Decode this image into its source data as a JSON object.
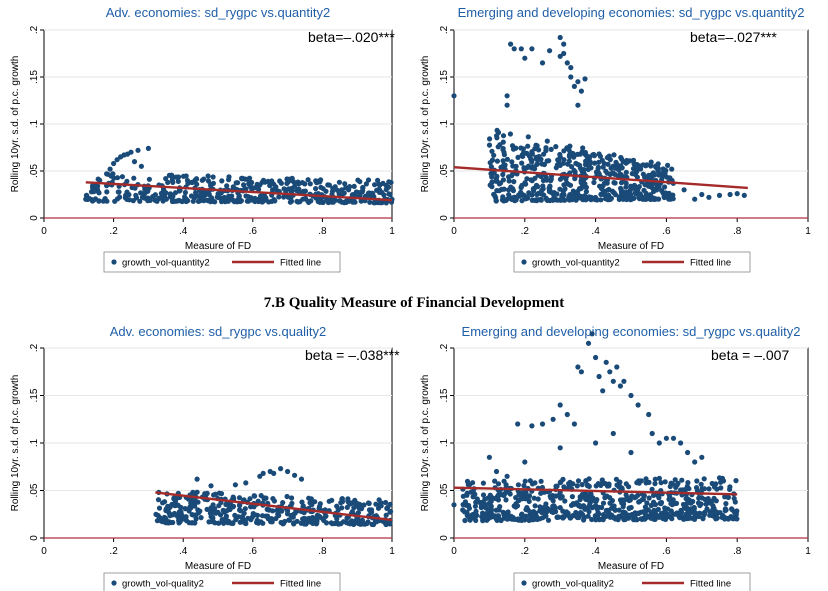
{
  "section_heading": "7.B Quality Measure of Financial Development",
  "colors": {
    "title": "#1f5fa8",
    "scatter": "#1a4a78",
    "fit": "#a52a2a",
    "zero_line": "#b03040",
    "plot_bg": "#ffffff",
    "grid": "#e6e6e6"
  },
  "chart_data": [
    {
      "type": "scatter",
      "title": "Adv. economies: sd_rygpc vs.quantity2",
      "xlabel": "Measure of FD",
      "ylabel": "Rolling 10yr. s.d. of p.c. growth",
      "xlim": [
        0,
        1
      ],
      "ylim": [
        0,
        0.2
      ],
      "xticks": [
        0,
        0.2,
        0.4,
        0.6,
        0.8,
        1
      ],
      "xtick_labels": [
        "0",
        ".2",
        ".4",
        ".6",
        ".8",
        "1"
      ],
      "yticks": [
        0,
        0.05,
        0.1,
        0.15,
        0.2
      ],
      "ytick_labels": [
        "0",
        ".05",
        ".1",
        ".15",
        ".2"
      ],
      "annotation": "beta=–.020***",
      "legend_position": "bottom",
      "series": [
        {
          "name": "growth_vol-quantity2",
          "kind": "points",
          "cloud": {
            "xmin": 0.12,
            "xmax": 1.0,
            "ylow0": 0.018,
            "ylow1": 0.016,
            "yhigh0": 0.048,
            "yhigh1": 0.04,
            "n": 480,
            "seed": 11
          },
          "extra": [
            [
              0.14,
              0.032
            ],
            [
              0.16,
              0.04
            ],
            [
              0.19,
              0.052
            ],
            [
              0.2,
              0.058
            ],
            [
              0.21,
              0.062
            ],
            [
              0.22,
              0.065
            ],
            [
              0.23,
              0.067
            ],
            [
              0.24,
              0.068
            ],
            [
              0.25,
              0.07
            ],
            [
              0.27,
              0.072
            ],
            [
              0.3,
              0.074
            ],
            [
              0.18,
              0.047
            ],
            [
              0.26,
              0.06
            ],
            [
              0.28,
              0.055
            ],
            [
              0.12,
              0.02
            ]
          ]
        },
        {
          "name": "Fitted line",
          "kind": "line",
          "points": [
            [
              0.12,
              0.038
            ],
            [
              1.0,
              0.019
            ]
          ]
        }
      ]
    },
    {
      "type": "scatter",
      "title": "Emerging and developing economies: sd_rygpc vs.quantity2",
      "xlabel": "Measure of FD",
      "ylabel": "Rolling 10yr. s.d. of p.c. growth",
      "xlim": [
        0,
        1
      ],
      "ylim": [
        0,
        0.2
      ],
      "xticks": [
        0,
        0.2,
        0.4,
        0.6,
        0.8,
        1
      ],
      "xtick_labels": [
        "0",
        ".2",
        ".4",
        ".6",
        ".8",
        "1"
      ],
      "yticks": [
        0,
        0.05,
        0.1,
        0.15,
        0.2
      ],
      "ytick_labels": [
        "0",
        ".05",
        ".1",
        ".15",
        ".2"
      ],
      "annotation": "beta=–.027***",
      "legend_position": "bottom",
      "series": [
        {
          "name": "growth_vol-quantity2",
          "kind": "points",
          "cloud": {
            "xmin": 0.1,
            "xmax": 0.62,
            "ylow0": 0.018,
            "ylow1": 0.02,
            "yhigh0": 0.095,
            "yhigh1": 0.055,
            "n": 600,
            "seed": 23
          },
          "extra": [
            [
              0.0,
              0.13
            ],
            [
              0.15,
              0.12
            ],
            [
              0.15,
              0.13
            ],
            [
              0.16,
              0.185
            ],
            [
              0.17,
              0.18
            ],
            [
              0.19,
              0.18
            ],
            [
              0.2,
              0.17
            ],
            [
              0.22,
              0.18
            ],
            [
              0.25,
              0.165
            ],
            [
              0.27,
              0.178
            ],
            [
              0.3,
              0.172
            ],
            [
              0.3,
              0.192
            ],
            [
              0.31,
              0.185
            ],
            [
              0.31,
              0.175
            ],
            [
              0.32,
              0.165
            ],
            [
              0.33,
              0.16
            ],
            [
              0.33,
              0.15
            ],
            [
              0.34,
              0.14
            ],
            [
              0.35,
              0.145
            ],
            [
              0.36,
              0.135
            ],
            [
              0.35,
              0.12
            ],
            [
              0.37,
              0.148
            ],
            [
              0.68,
              0.02
            ],
            [
              0.7,
              0.025
            ],
            [
              0.72,
              0.022
            ],
            [
              0.75,
              0.024
            ],
            [
              0.78,
              0.025
            ],
            [
              0.8,
              0.026
            ],
            [
              0.82,
              0.024
            ],
            [
              0.65,
              0.03
            ]
          ]
        },
        {
          "name": "Fitted line",
          "kind": "line",
          "points": [
            [
              0.0,
              0.054
            ],
            [
              0.83,
              0.032
            ]
          ]
        }
      ]
    },
    {
      "type": "scatter",
      "title": "Adv. economies: sd_rygpc vs.quality2",
      "xlabel": "Measure of FD",
      "ylabel": "Rolling 10yr. s.d. of p.c. growth",
      "xlim": [
        0,
        1
      ],
      "ylim": [
        0,
        0.2
      ],
      "xticks": [
        0,
        0.2,
        0.4,
        0.6,
        0.8,
        1
      ],
      "xtick_labels": [
        "0",
        ".2",
        ".4",
        ".6",
        ".8",
        "1"
      ],
      "yticks": [
        0,
        0.05,
        0.1,
        0.15,
        0.2
      ],
      "ytick_labels": [
        "0",
        ".05",
        ".1",
        ".15",
        ".2"
      ],
      "annotation": "beta = –.038***",
      "legend_position": "bottom",
      "series": [
        {
          "name": "growth_vol-quality2",
          "kind": "points",
          "cloud": {
            "xmin": 0.32,
            "xmax": 1.0,
            "ylow0": 0.016,
            "ylow1": 0.014,
            "yhigh0": 0.05,
            "yhigh1": 0.04,
            "n": 420,
            "seed": 37
          },
          "extra": [
            [
              0.62,
              0.065
            ],
            [
              0.63,
              0.068
            ],
            [
              0.65,
              0.07
            ],
            [
              0.66,
              0.068
            ],
            [
              0.68,
              0.073
            ],
            [
              0.7,
              0.07
            ],
            [
              0.72,
              0.066
            ],
            [
              0.74,
              0.062
            ],
            [
              0.58,
              0.058
            ],
            [
              0.55,
              0.056
            ],
            [
              0.44,
              0.062
            ],
            [
              0.48,
              0.055
            ],
            [
              0.36,
              0.026
            ],
            [
              0.33,
              0.048
            ]
          ]
        },
        {
          "name": "Fitted line",
          "kind": "line",
          "points": [
            [
              0.32,
              0.048
            ],
            [
              1.0,
              0.019
            ]
          ]
        }
      ]
    },
    {
      "type": "scatter",
      "title": "Emerging and developing economies: sd_rygpc vs.quality2",
      "xlabel": "Measure of FD",
      "ylabel": "Rolling 10yr. s.d. of p.c. growth",
      "xlim": [
        0,
        1
      ],
      "ylim": [
        0,
        0.2
      ],
      "xticks": [
        0,
        0.2,
        0.4,
        0.6,
        0.8,
        1
      ],
      "xtick_labels": [
        "0",
        ".2",
        ".4",
        ".6",
        ".8",
        "1"
      ],
      "yticks": [
        0,
        0.05,
        0.1,
        0.15,
        0.2
      ],
      "ytick_labels": [
        "0",
        ".05",
        ".1",
        ".15",
        ".2"
      ],
      "annotation": "beta = –.007",
      "legend_position": "bottom",
      "series": [
        {
          "name": "growth_vol-quality2",
          "kind": "points",
          "cloud": {
            "xmin": 0.02,
            "xmax": 0.8,
            "ylow0": 0.018,
            "ylow1": 0.02,
            "yhigh0": 0.06,
            "yhigh1": 0.065,
            "n": 700,
            "seed": 53
          },
          "extra": [
            [
              0.38,
              0.205
            ],
            [
              0.39,
              0.215
            ],
            [
              0.4,
              0.19
            ],
            [
              0.35,
              0.18
            ],
            [
              0.36,
              0.175
            ],
            [
              0.41,
              0.17
            ],
            [
              0.43,
              0.185
            ],
            [
              0.44,
              0.175
            ],
            [
              0.45,
              0.165
            ],
            [
              0.46,
              0.18
            ],
            [
              0.47,
              0.16
            ],
            [
              0.48,
              0.165
            ],
            [
              0.5,
              0.15
            ],
            [
              0.52,
              0.14
            ],
            [
              0.42,
              0.155
            ],
            [
              0.3,
              0.14
            ],
            [
              0.32,
              0.13
            ],
            [
              0.28,
              0.125
            ],
            [
              0.25,
              0.12
            ],
            [
              0.22,
              0.118
            ],
            [
              0.18,
              0.12
            ],
            [
              0.34,
              0.12
            ],
            [
              0.55,
              0.13
            ],
            [
              0.56,
              0.11
            ],
            [
              0.58,
              0.1
            ],
            [
              0.6,
              0.105
            ],
            [
              0.62,
              0.105
            ],
            [
              0.64,
              0.1
            ],
            [
              0.66,
              0.09
            ],
            [
              0.68,
              0.08
            ],
            [
              0.7,
              0.085
            ],
            [
              0.1,
              0.085
            ],
            [
              0.12,
              0.07
            ],
            [
              0.15,
              0.065
            ],
            [
              0.2,
              0.08
            ],
            [
              0.3,
              0.095
            ],
            [
              0.4,
              0.1
            ],
            [
              0.5,
              0.09
            ],
            [
              0.45,
              0.11
            ],
            [
              0.0,
              0.035
            ]
          ]
        },
        {
          "name": "Fitted line",
          "kind": "line",
          "points": [
            [
              0.0,
              0.053
            ],
            [
              0.8,
              0.046
            ]
          ]
        }
      ]
    }
  ]
}
